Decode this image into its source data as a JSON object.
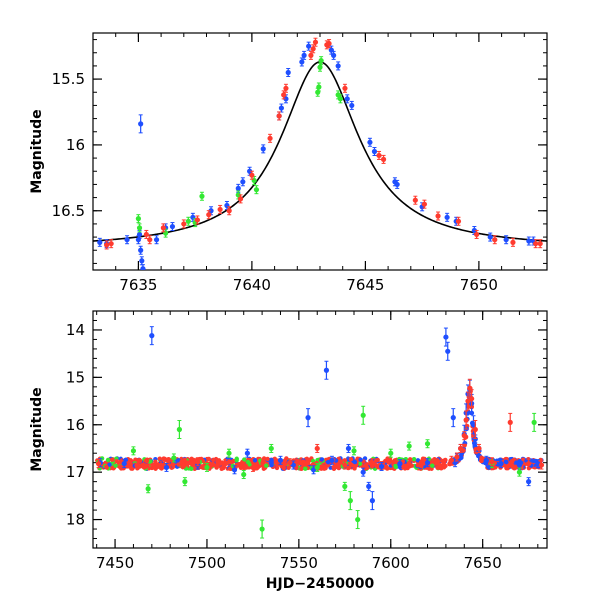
{
  "chart_data": [
    {
      "type": "scatter",
      "ylabel": "Magnitude",
      "xlabel": "",
      "xlim": [
        7633,
        7653
      ],
      "ylim": [
        16.95,
        15.15
      ],
      "y_inverted": true,
      "xticks": [
        7635,
        7640,
        7645,
        7650
      ],
      "yticks": [
        15.5,
        16,
        16.5
      ],
      "ytick_labels": [
        "15.5",
        "16",
        "16.5"
      ],
      "grid": false,
      "legend": "none",
      "series": [
        {
          "color": "#1f4fff",
          "points": [
            [
              7633.3,
              16.74
            ],
            [
              7633.6,
              16.75
            ],
            [
              7634.5,
              16.72
            ],
            [
              7635.0,
              16.72
            ],
            [
              7635.05,
              16.68
            ],
            [
              7635.1,
              16.8
            ],
            [
              7635.15,
              16.88
            ],
            [
              7635.2,
              16.94
            ],
            [
              7635.1,
              15.84
            ],
            [
              7635.8,
              16.72
            ],
            [
              7636.2,
              16.63
            ],
            [
              7636.5,
              16.62
            ],
            [
              7637.4,
              16.55
            ],
            [
              7638.2,
              16.5
            ],
            [
              7638.9,
              16.46
            ],
            [
              7639.4,
              16.33
            ],
            [
              7639.6,
              16.28
            ],
            [
              7639.9,
              16.2
            ],
            [
              7640.5,
              16.03
            ],
            [
              7641.2,
              15.78
            ],
            [
              7641.3,
              15.72
            ],
            [
              7641.5,
              15.65
            ],
            [
              7641.6,
              15.45
            ],
            [
              7642.2,
              15.37
            ],
            [
              7642.3,
              15.32
            ],
            [
              7642.5,
              15.25
            ],
            [
              7643.5,
              15.28
            ],
            [
              7643.6,
              15.32
            ],
            [
              7643.8,
              15.4
            ],
            [
              7644.2,
              15.65
            ],
            [
              7644.4,
              15.7
            ],
            [
              7645.2,
              15.98
            ],
            [
              7645.4,
              16.05
            ],
            [
              7646.3,
              16.28
            ],
            [
              7646.4,
              16.3
            ],
            [
              7647.5,
              16.47
            ],
            [
              7648.6,
              16.55
            ],
            [
              7649.0,
              16.58
            ],
            [
              7649.8,
              16.65
            ],
            [
              7650.5,
              16.7
            ],
            [
              7651.2,
              16.72
            ],
            [
              7652.2,
              16.73
            ],
            [
              7652.4,
              16.73
            ]
          ]
        },
        {
          "color": "#33e833",
          "points": [
            [
              7635.0,
              16.56
            ],
            [
              7635.05,
              16.63
            ],
            [
              7636.2,
              16.67
            ],
            [
              7637.2,
              16.58
            ],
            [
              7637.5,
              16.59
            ],
            [
              7637.8,
              16.39
            ],
            [
              7639.4,
              16.38
            ],
            [
              7640.1,
              16.27
            ],
            [
              7640.2,
              16.34
            ],
            [
              7642.9,
              15.6
            ],
            [
              7642.95,
              15.56
            ],
            [
              7643.0,
              15.41
            ],
            [
              7643.05,
              15.36
            ],
            [
              7643.8,
              15.62
            ],
            [
              7643.9,
              15.65
            ]
          ]
        },
        {
          "color": "#ff3b2f",
          "points": [
            [
              7633.6,
              16.76
            ],
            [
              7633.8,
              16.75
            ],
            [
              7635.35,
              16.68
            ],
            [
              7635.5,
              16.72
            ],
            [
              7636.1,
              16.63
            ],
            [
              7637.0,
              16.6
            ],
            [
              7637.6,
              16.57
            ],
            [
              7638.1,
              16.53
            ],
            [
              7638.6,
              16.49
            ],
            [
              7639.0,
              16.5
            ],
            [
              7639.5,
              16.41
            ],
            [
              7640.0,
              16.23
            ],
            [
              7640.8,
              15.95
            ],
            [
              7641.2,
              15.78
            ],
            [
              7641.4,
              15.62
            ],
            [
              7641.5,
              15.57
            ],
            [
              7642.6,
              15.32
            ],
            [
              7642.7,
              15.27
            ],
            [
              7642.8,
              15.22
            ],
            [
              7643.3,
              15.24
            ],
            [
              7643.4,
              15.23
            ],
            [
              7644.1,
              15.57
            ],
            [
              7645.6,
              16.08
            ],
            [
              7645.8,
              16.11
            ],
            [
              7647.2,
              16.42
            ],
            [
              7647.6,
              16.45
            ],
            [
              7648.2,
              16.54
            ],
            [
              7649.1,
              16.58
            ],
            [
              7649.9,
              16.68
            ],
            [
              7650.7,
              16.72
            ],
            [
              7651.5,
              16.74
            ],
            [
              7652.5,
              16.75
            ],
            [
              7652.7,
              16.75
            ]
          ]
        }
      ],
      "model_curve": {
        "color": "#000000",
        "t0": 7643.0,
        "baseline": 16.79,
        "peak": 15.37,
        "width": 2.1
      }
    },
    {
      "type": "scatter",
      "ylabel": "Magnitude",
      "xlabel": "HJD−2450000",
      "xlim": [
        7438,
        7685
      ],
      "ylim": [
        18.6,
        13.6
      ],
      "y_inverted": true,
      "xticks": [
        7450,
        7500,
        7550,
        7600,
        7650
      ],
      "yticks": [
        14,
        15,
        16,
        17,
        18
      ],
      "ytick_labels": [
        "14",
        "15",
        "16",
        "17",
        "18"
      ],
      "grid": false,
      "legend": "none",
      "baseline": 16.82,
      "series": [
        {
          "color": "#1f4fff",
          "points": [
            [
              7442,
              16.8
            ],
            [
              7455,
              16.82
            ],
            [
              7470,
              14.12
            ],
            [
              7478,
              16.9
            ],
            [
              7495,
              16.85
            ],
            [
              7515,
              16.95
            ],
            [
              7522,
              16.6
            ],
            [
              7535,
              16.8
            ],
            [
              7540,
              16.75
            ],
            [
              7547,
              16.85
            ],
            [
              7555,
              15.85
            ],
            [
              7558,
              16.95
            ],
            [
              7565,
              14.85
            ],
            [
              7568,
              16.75
            ],
            [
              7577,
              16.5
            ],
            [
              7585,
              17.0
            ],
            [
              7588,
              17.3
            ],
            [
              7590,
              17.6
            ],
            [
              7595,
              16.88
            ],
            [
              7605,
              16.82
            ],
            [
              7620,
              16.8
            ],
            [
              7630,
              14.15
            ],
            [
              7631,
              14.45
            ],
            [
              7634,
              15.85
            ],
            [
              7635,
              16.8
            ],
            [
              7636,
              16.7
            ],
            [
              7638,
              16.5
            ],
            [
              7640,
              16.2
            ],
            [
              7641,
              15.75
            ],
            [
              7642,
              15.35
            ],
            [
              7643,
              15.25
            ],
            [
              7644,
              15.55
            ],
            [
              7645,
              16.0
            ],
            [
              7646,
              16.3
            ],
            [
              7648,
              16.55
            ],
            [
              7652,
              16.75
            ],
            [
              7660,
              16.82
            ],
            [
              7670,
              16.85
            ],
            [
              7675,
              17.2
            ],
            [
              7680,
              16.82
            ]
          ]
        },
        {
          "color": "#33e833",
          "points": [
            [
              7460,
              16.55
            ],
            [
              7468,
              17.35
            ],
            [
              7482,
              16.7
            ],
            [
              7485,
              16.1
            ],
            [
              7488,
              17.2
            ],
            [
              7500,
              16.9
            ],
            [
              7512,
              16.6
            ],
            [
              7520,
              17.05
            ],
            [
              7530,
              18.2
            ],
            [
              7535,
              16.5
            ],
            [
              7560,
              16.9
            ],
            [
              7575,
              17.3
            ],
            [
              7578,
              17.6
            ],
            [
              7580,
              16.55
            ],
            [
              7582,
              18.0
            ],
            [
              7585,
              15.8
            ],
            [
              7600,
              16.6
            ],
            [
              7610,
              16.45
            ],
            [
              7620,
              16.4
            ],
            [
              7655,
              16.82
            ],
            [
              7670,
              17.0
            ],
            [
              7678,
              15.95
            ]
          ]
        },
        {
          "color": "#ff3b2f",
          "points": [
            [
              7441,
              16.82
            ],
            [
              7458,
              16.8
            ],
            [
              7475,
              16.85
            ],
            [
              7495,
              16.78
            ],
            [
              7510,
              16.82
            ],
            [
              7525,
              16.9
            ],
            [
              7545,
              16.8
            ],
            [
              7560,
              16.5
            ],
            [
              7575,
              16.85
            ],
            [
              7590,
              16.8
            ],
            [
              7610,
              16.82
            ],
            [
              7625,
              16.8
            ],
            [
              7633,
              16.75
            ],
            [
              7636,
              16.68
            ],
            [
              7638,
              16.5
            ],
            [
              7640,
              16.23
            ],
            [
              7641,
              15.9
            ],
            [
              7642,
              15.5
            ],
            [
              7643,
              15.23
            ],
            [
              7644,
              15.45
            ],
            [
              7646,
              16.1
            ],
            [
              7648,
              16.5
            ],
            [
              7655,
              16.78
            ],
            [
              7665,
              15.95
            ],
            [
              7675,
              16.82
            ],
            [
              7682,
              16.85
            ]
          ]
        }
      ]
    }
  ]
}
